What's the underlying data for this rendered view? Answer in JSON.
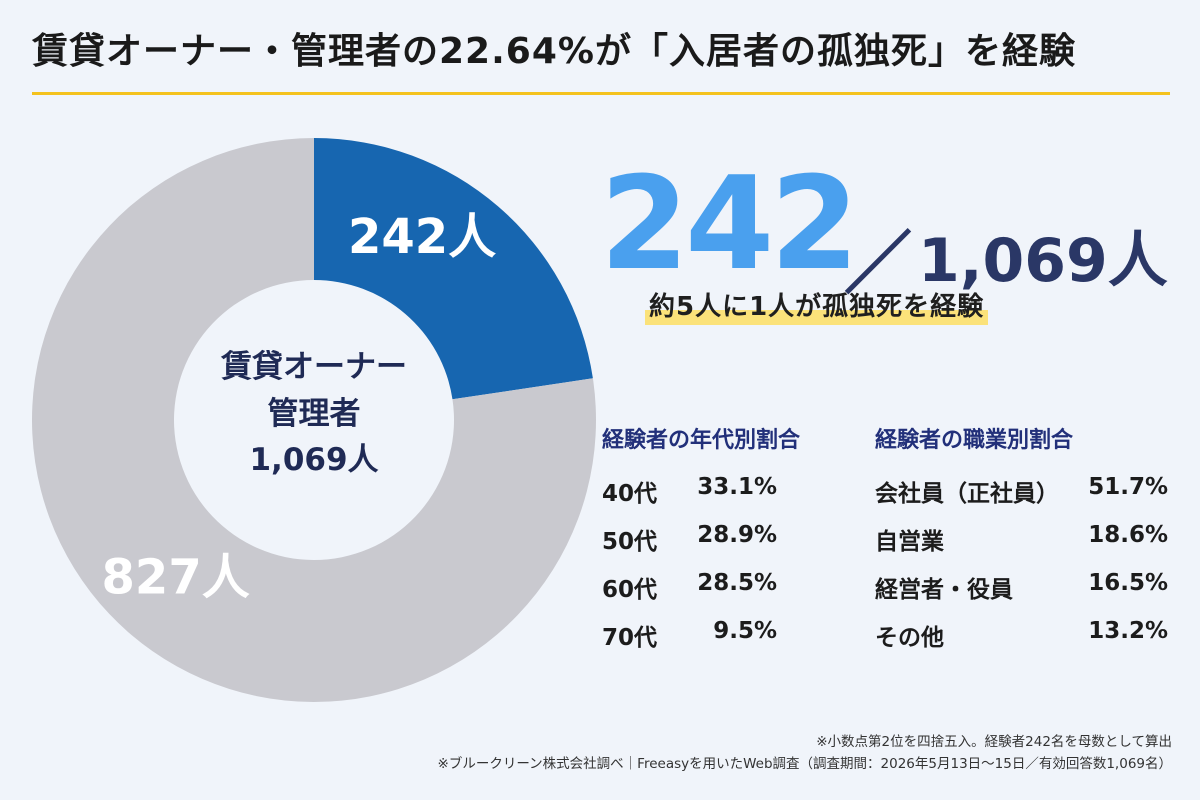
{
  "title": "賃貸オーナー・管理者の22.64%が「入居者の孤独死」を経験",
  "center_label": {
    "line1": "賃貸オーナー",
    "line2": "管理者",
    "line3": "1,069人"
  },
  "headline": {
    "big": "242",
    "slash": "／",
    "total": "1,069人",
    "sub": "約5人に1人が孤独死を経験"
  },
  "colors": {
    "experienced": "#1766b0",
    "not_experienced": "#c9c9cf",
    "accent_big": "#4aa0ee",
    "highlight": "#fbe27a",
    "rule": "#f4c21d"
  },
  "chart_data": [
    {
      "type": "pie",
      "donut": true,
      "slices": [
        {
          "label": "242人",
          "value": 242,
          "color": "#1766b0"
        },
        {
          "label": "827人",
          "value": 827,
          "color": "#c9c9cf"
        }
      ]
    },
    {
      "type": "table",
      "title": "経験者の年代別割合",
      "rows": [
        {
          "label": "40代",
          "value": "33.1%"
        },
        {
          "label": "50代",
          "value": "28.9%"
        },
        {
          "label": "60代",
          "value": "28.5%"
        },
        {
          "label": "70代",
          "value": "9.5%"
        }
      ]
    },
    {
      "type": "table",
      "title": "経験者の職業別割合",
      "rows": [
        {
          "label": "会社員（正社員）",
          "value": "51.7%"
        },
        {
          "label": "自営業",
          "value": "18.6%"
        },
        {
          "label": "経営者・役員",
          "value": "16.5%"
        },
        {
          "label": "その他",
          "value": "13.2%"
        }
      ]
    }
  ],
  "footnotes": [
    "※小数点第2位を四捨五入。経験者242名を母数として算出",
    "※ブルークリーン株式会社調べ｜Freeasyを用いたWeb調査（調査期間：2026年5月13日〜15日／有効回答数1,069名）"
  ]
}
